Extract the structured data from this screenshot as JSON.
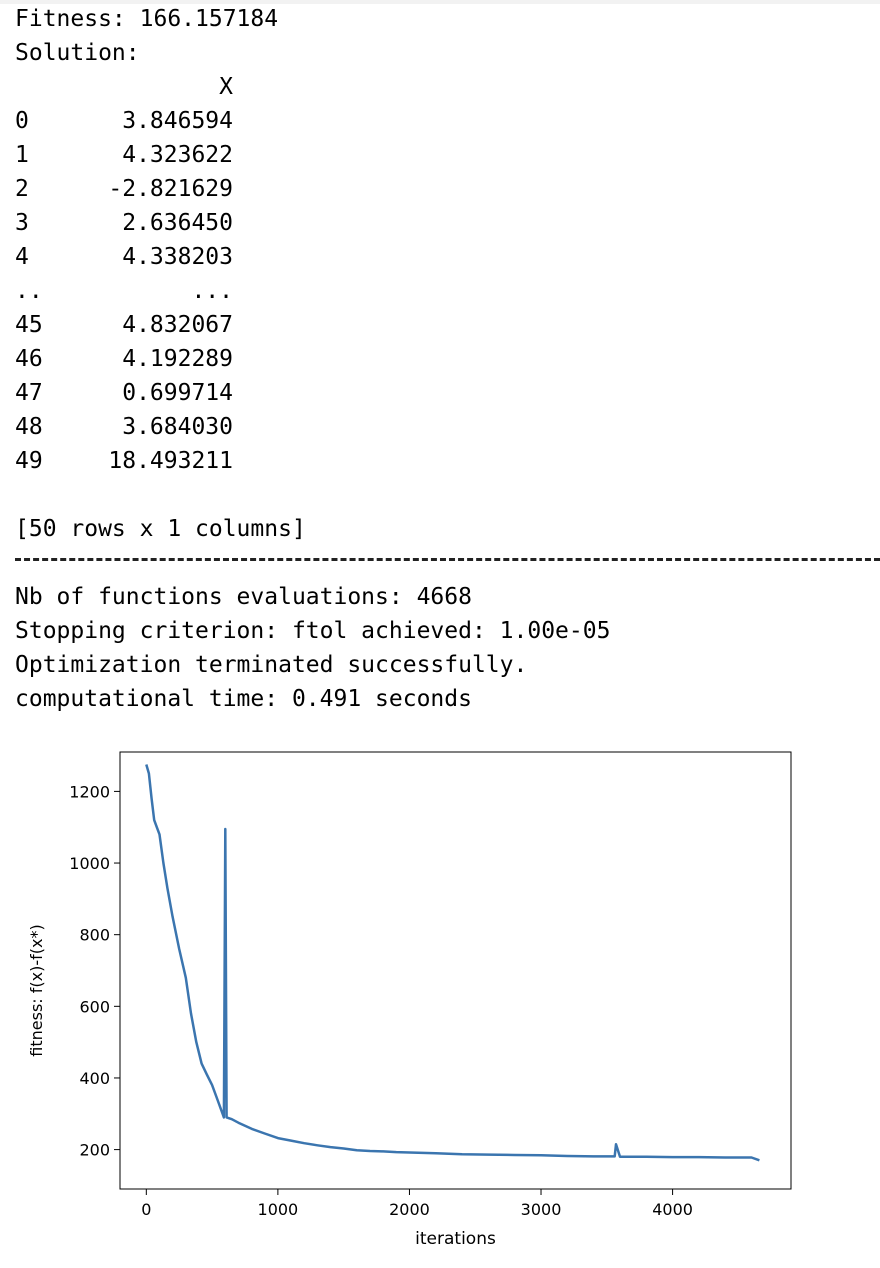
{
  "output": {
    "fitness_line": "Fitness: 166.157184",
    "solution_label": "Solution:",
    "column_header": "X",
    "rows": [
      {
        "index": "0",
        "value": "3.846594"
      },
      {
        "index": "1",
        "value": "4.323622"
      },
      {
        "index": "2",
        "value": "-2.821629"
      },
      {
        "index": "3",
        "value": "2.636450"
      },
      {
        "index": "4",
        "value": "4.338203"
      },
      {
        "index": "..",
        "value": "..."
      },
      {
        "index": "45",
        "value": "4.832067"
      },
      {
        "index": "46",
        "value": "4.192289"
      },
      {
        "index": "47",
        "value": "0.699714"
      },
      {
        "index": "48",
        "value": "3.684030"
      },
      {
        "index": "49",
        "value": "18.493211"
      }
    ],
    "shape_line": "[50 rows x 1 columns]",
    "evaluations_line": "Nb of functions evaluations: 4668",
    "stopping_line": "Stopping criterion: ftol achieved: 1.00e-05",
    "terminated_line": "Optimization terminated successfully.",
    "time_line": "computational time: 0.491 seconds"
  },
  "colors": {
    "line": "#3b75af",
    "axes": "#000000",
    "text": "#000000"
  },
  "chart_data": {
    "type": "line",
    "title": "",
    "xlabel": "iterations",
    "ylabel": "fitness: f(x)-f(x*)",
    "xlim": [
      -200,
      4900
    ],
    "ylim": [
      90,
      1310
    ],
    "xticks": [
      0,
      1000,
      2000,
      3000,
      4000
    ],
    "yticks": [
      200,
      400,
      600,
      800,
      1000,
      1200
    ],
    "grid": false,
    "series": [
      {
        "x": [
          0,
          20,
          40,
          60,
          80,
          100,
          130,
          160,
          200,
          250,
          300,
          340,
          380,
          420,
          460,
          500,
          540,
          580,
          590,
          600,
          610,
          650,
          700,
          800,
          900,
          1000,
          1100,
          1200,
          1300,
          1400,
          1500,
          1600,
          1700,
          1800,
          1900,
          2000,
          2200,
          2400,
          2600,
          2800,
          3000,
          3200,
          3400,
          3560,
          3570,
          3600,
          3800,
          4000,
          4200,
          4400,
          4600,
          4660
        ],
        "y": [
          1275,
          1250,
          1180,
          1120,
          1100,
          1080,
          1000,
          930,
          850,
          760,
          680,
          580,
          500,
          440,
          410,
          380,
          340,
          300,
          290,
          1095,
          290,
          285,
          275,
          258,
          245,
          232,
          225,
          218,
          212,
          207,
          203,
          198,
          196,
          195,
          193,
          192,
          190,
          187,
          186,
          185,
          184,
          182,
          181,
          181,
          215,
          180,
          180,
          179,
          179,
          178,
          178,
          170
        ]
      }
    ]
  }
}
